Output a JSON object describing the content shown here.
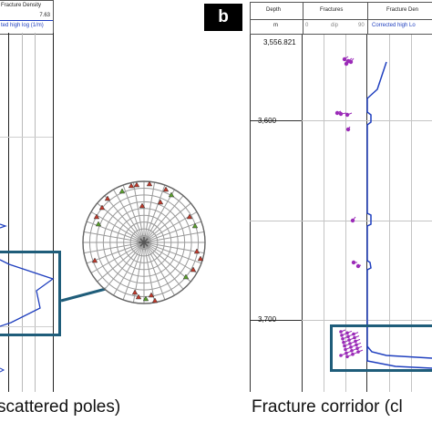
{
  "panel_a": {
    "header_title": "Fracture Density",
    "header_value": "7.63",
    "header_track_label": "ted high log (1/m)",
    "caption": "scattered poles)"
  },
  "panel_b": {
    "badge": "b",
    "headers": {
      "depth": "Depth",
      "fractures": "Fractures",
      "fracture_density": "Fracture Den"
    },
    "units": {
      "depth": "m",
      "fractures_min": "0",
      "fractures_mid": "dip",
      "fractures_max": "90",
      "fracture_density": "Corrected high Lo"
    },
    "depth_labels": [
      "3,556.821",
      "3,600",
      "3,700"
    ],
    "caption": "Fracture corridor (cl"
  },
  "colors": {
    "highlight_box": "#1f5d7a",
    "density_curve": "#1f3fbf",
    "fracture_tadpoles": "#9b2bb8",
    "stereonet_grid": "#9a9a9a",
    "pole_red": "#c0392b",
    "pole_green": "#5aa02c"
  }
}
